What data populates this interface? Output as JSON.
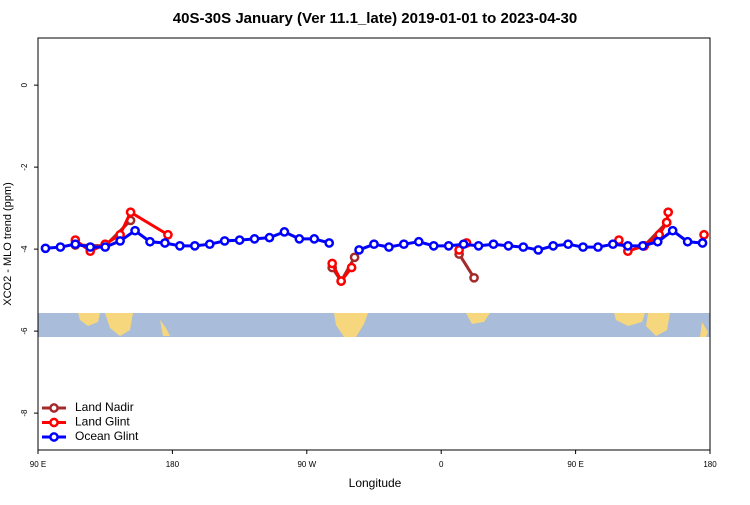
{
  "chart_data": {
    "type": "line",
    "title": "40S-30S January (Ver 11.1_late)   2019-01-01 to 2023-04-30",
    "xlabel": "Longitude",
    "ylabel": "XCO2 - MLO trend (ppm)",
    "xlim": [
      90,
      540
    ],
    "ylim": [
      -8.9,
      1.15
    ],
    "xticks": [
      {
        "value": 90,
        "label": "90 E"
      },
      180,
      {
        "value": 270,
        "label": "90 W"
      },
      {
        "value": 360,
        "label": "0"
      },
      {
        "value": 450,
        "label": "90 E"
      },
      {
        "value": 540,
        "label": "180"
      }
    ],
    "yticks": [
      0,
      -2,
      -4,
      -6,
      -8
    ],
    "legend": "bottom-left",
    "series": [
      {
        "name": "Land Nadir",
        "color": "#a52a2a",
        "x": [
          115,
          135,
          152,
          null,
          287,
          293,
          302,
          null,
          372,
          382,
          null,
          496,
          511
        ],
        "values": [
          -3.9,
          -3.92,
          -3.3,
          null,
          -4.45,
          -4.78,
          -4.2,
          null,
          -4.12,
          -4.7,
          null,
          -3.92,
          -3.35
        ]
      },
      {
        "name": "Land Glint",
        "color": "#ff0000",
        "x": [
          115,
          125,
          135,
          145,
          152,
          177,
          null,
          287,
          293,
          300,
          null,
          372,
          377,
          null,
          479,
          485,
          496,
          506,
          511,
          512,
          null,
          536
        ],
        "values": [
          -3.78,
          -4.05,
          -3.88,
          -3.65,
          -3.1,
          -3.65,
          null,
          -4.35,
          -4.78,
          -4.45,
          null,
          -4.02,
          -3.85,
          null,
          -3.78,
          -4.05,
          -3.92,
          -3.65,
          -3.35,
          -3.1,
          null,
          -3.65
        ]
      },
      {
        "name": "Ocean Glint",
        "color": "#0000ff",
        "x": [
          95,
          105,
          115,
          125,
          135,
          145,
          155,
          165,
          175,
          185,
          195,
          205,
          215,
          225,
          235,
          245,
          255,
          265,
          275,
          285,
          null,
          305,
          315,
          325,
          335,
          345,
          355,
          365,
          375,
          385,
          395,
          405,
          415,
          425,
          435,
          445,
          455,
          465,
          475,
          485,
          495,
          505,
          515,
          525,
          535
        ],
        "values": [
          -3.98,
          -3.95,
          -3.88,
          -3.95,
          -3.95,
          -3.8,
          -3.55,
          -3.82,
          -3.85,
          -3.92,
          -3.92,
          -3.88,
          -3.8,
          -3.78,
          -3.75,
          -3.72,
          -3.58,
          -3.75,
          -3.75,
          -3.85,
          null,
          -4.02,
          -3.88,
          -3.95,
          -3.88,
          -3.82,
          -3.92,
          -3.92,
          -3.88,
          -3.92,
          -3.88,
          -3.92,
          -3.95,
          -4.02,
          -3.92,
          -3.88,
          -3.95,
          -3.95,
          -3.88,
          -3.92,
          -3.92,
          -3.82,
          -3.55,
          -3.82,
          -3.85
        ]
      }
    ]
  }
}
